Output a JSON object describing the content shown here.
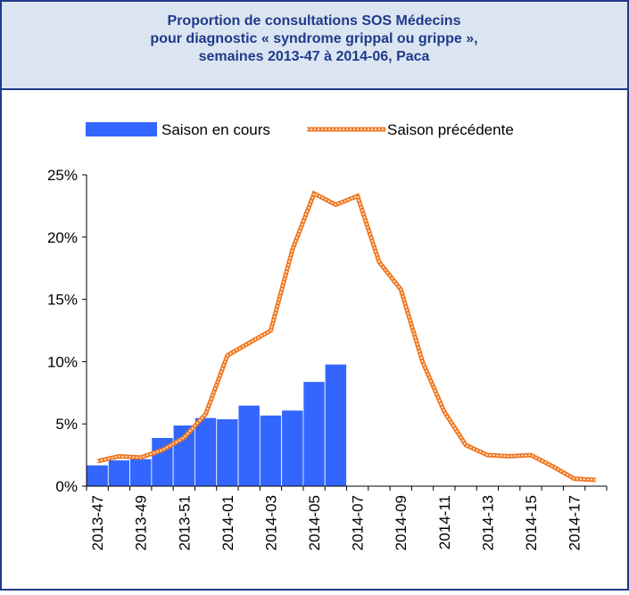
{
  "chart_data": {
    "type": "bar_line",
    "title": [
      "Proportion de consultations SOS Médecins",
      "pour diagnostic « syndrome grippal ou grippe »,",
      "semaines 2013-47 à 2014-06, Paca"
    ],
    "categories": [
      "2013-47",
      null,
      "2013-49",
      null,
      "2013-51",
      null,
      "2014-01",
      null,
      "2014-03",
      null,
      "2014-05",
      null,
      "2014-07",
      null,
      "2014-09",
      null,
      "2014-11",
      null,
      "2014-13",
      null,
      "2014-15",
      null,
      "2014-17",
      null
    ],
    "series": [
      {
        "name": "Saison en cours",
        "color": "#3366ff",
        "type": "bar",
        "values": [
          1.7,
          2.1,
          2.2,
          3.9,
          4.9,
          5.5,
          5.4,
          6.5,
          5.7,
          6.1,
          8.4,
          9.8,
          null,
          null,
          null,
          null,
          null,
          null,
          null,
          null,
          null,
          null,
          null,
          null
        ]
      },
      {
        "name": "Saison précédente",
        "color": "#f07820",
        "type": "line",
        "values": [
          2.0,
          2.4,
          2.3,
          2.9,
          3.9,
          5.8,
          10.5,
          11.5,
          12.5,
          19.0,
          23.5,
          22.6,
          23.3,
          18.0,
          15.8,
          10.0,
          6.0,
          3.3,
          2.5,
          2.4,
          2.5,
          1.6,
          0.6,
          0.5
        ]
      }
    ],
    "ylim": [
      0,
      25
    ],
    "yticks": [
      {
        "value": 0,
        "label": "0%"
      },
      {
        "value": 5,
        "label": "5%"
      },
      {
        "value": 10,
        "label": "10%"
      },
      {
        "value": 15,
        "label": "15%"
      },
      {
        "value": 20,
        "label": "20%"
      },
      {
        "value": 25,
        "label": "25%"
      }
    ],
    "legend": "top"
  }
}
